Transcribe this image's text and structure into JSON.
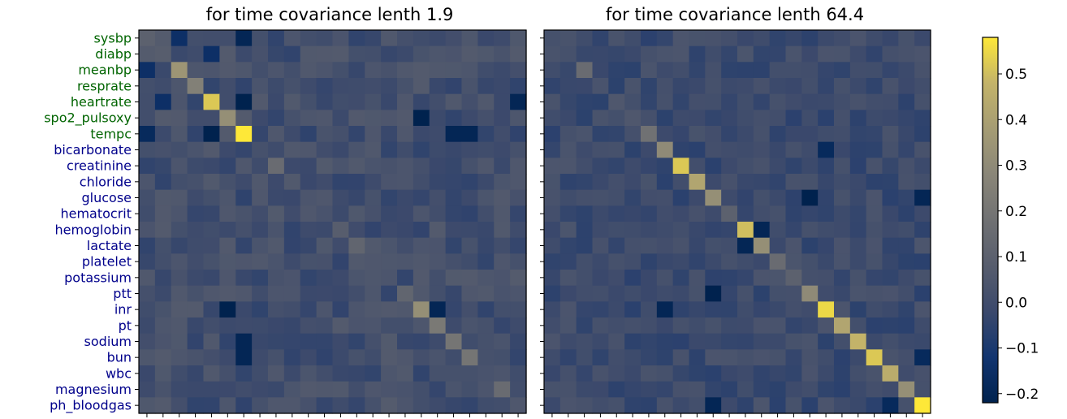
{
  "chart_data": {
    "type": "heatmap",
    "colormap": "cividis",
    "color_range": [
      -0.22,
      0.58
    ],
    "colorbar_ticks": [
      "0.5",
      "0.4",
      "0.3",
      "0.2",
      "0.1",
      "0.0",
      "−0.1",
      "−0.2"
    ],
    "colorbar_tick_values": [
      0.5,
      0.4,
      0.3,
      0.2,
      0.1,
      0.0,
      -0.1,
      -0.2
    ],
    "row_labels": [
      "sysbp",
      "diabp",
      "meanbp",
      "resprate",
      "heartrate",
      "spo2_pulsoxy",
      "tempc",
      "bicarbonate",
      "creatinine",
      "chloride",
      "glucose",
      "hematocrit",
      "hemoglobin",
      "lactate",
      "platelet",
      "potassium",
      "ptt",
      "inr",
      "pt",
      "sodium",
      "bun",
      "wbc",
      "magnesium",
      "ph_bloodgas"
    ],
    "label_colors": {
      "vitals": "#006400",
      "labs": "#00008b"
    },
    "vital_count": 7,
    "panels": [
      {
        "title": "for time covariance lenth 1.9",
        "diagonal": [
          0.1,
          0.08,
          0.35,
          0.25,
          0.52,
          0.32,
          0.58,
          0.02,
          0.15,
          0.06,
          0.04,
          0.03,
          0.08,
          0.12,
          0.05,
          0.04,
          0.12,
          0.32,
          0.22,
          0.2,
          0.18,
          0.03,
          0.15,
          0.05
        ],
        "offdiag_strong": [
          {
            "row": 0,
            "col": 2,
            "value": -0.15
          },
          {
            "row": 0,
            "col": 6,
            "value": -0.2
          },
          {
            "row": 1,
            "col": 4,
            "value": -0.15
          },
          {
            "row": 2,
            "col": 0,
            "value": -0.15
          },
          {
            "row": 4,
            "col": 1,
            "value": -0.15
          },
          {
            "row": 4,
            "col": 6,
            "value": -0.22
          },
          {
            "row": 4,
            "col": 23,
            "value": -0.2
          },
          {
            "row": 5,
            "col": 17,
            "value": -0.22
          },
          {
            "row": 6,
            "col": 0,
            "value": -0.18
          },
          {
            "row": 6,
            "col": 4,
            "value": -0.22
          },
          {
            "row": 6,
            "col": 19,
            "value": -0.2
          },
          {
            "row": 6,
            "col": 20,
            "value": -0.2
          },
          {
            "row": 17,
            "col": 5,
            "value": -0.22
          },
          {
            "row": 17,
            "col": 18,
            "value": -0.2
          },
          {
            "row": 19,
            "col": 6,
            "value": -0.2
          },
          {
            "row": 20,
            "col": 6,
            "value": -0.2
          },
          {
            "row": 19,
            "col": 19,
            "value": 0.2
          },
          {
            "row": 20,
            "col": 20,
            "value": 0.2
          },
          {
            "row": 17,
            "col": 17,
            "value": 0.32
          }
        ]
      },
      {
        "title": "for time covariance lenth 64.4",
        "diagonal": [
          0.02,
          0.02,
          0.15,
          0.03,
          0.05,
          0.05,
          0.18,
          0.3,
          0.52,
          0.42,
          0.32,
          0.1,
          0.5,
          0.32,
          0.15,
          0.1,
          0.3,
          0.55,
          0.42,
          0.48,
          0.52,
          0.45,
          0.32,
          0.58
        ],
        "offdiag_strong": [
          {
            "row": 7,
            "col": 17,
            "value": -0.18
          },
          {
            "row": 10,
            "col": 16,
            "value": -0.22
          },
          {
            "row": 10,
            "col": 23,
            "value": -0.2
          },
          {
            "row": 12,
            "col": 13,
            "value": -0.2
          },
          {
            "row": 13,
            "col": 12,
            "value": -0.2
          },
          {
            "row": 16,
            "col": 10,
            "value": -0.22
          },
          {
            "row": 17,
            "col": 7,
            "value": -0.2
          },
          {
            "row": 20,
            "col": 23,
            "value": -0.18
          },
          {
            "row": 23,
            "col": 10,
            "value": -0.2
          },
          {
            "row": 23,
            "col": 21,
            "value": -0.18
          }
        ]
      }
    ]
  }
}
